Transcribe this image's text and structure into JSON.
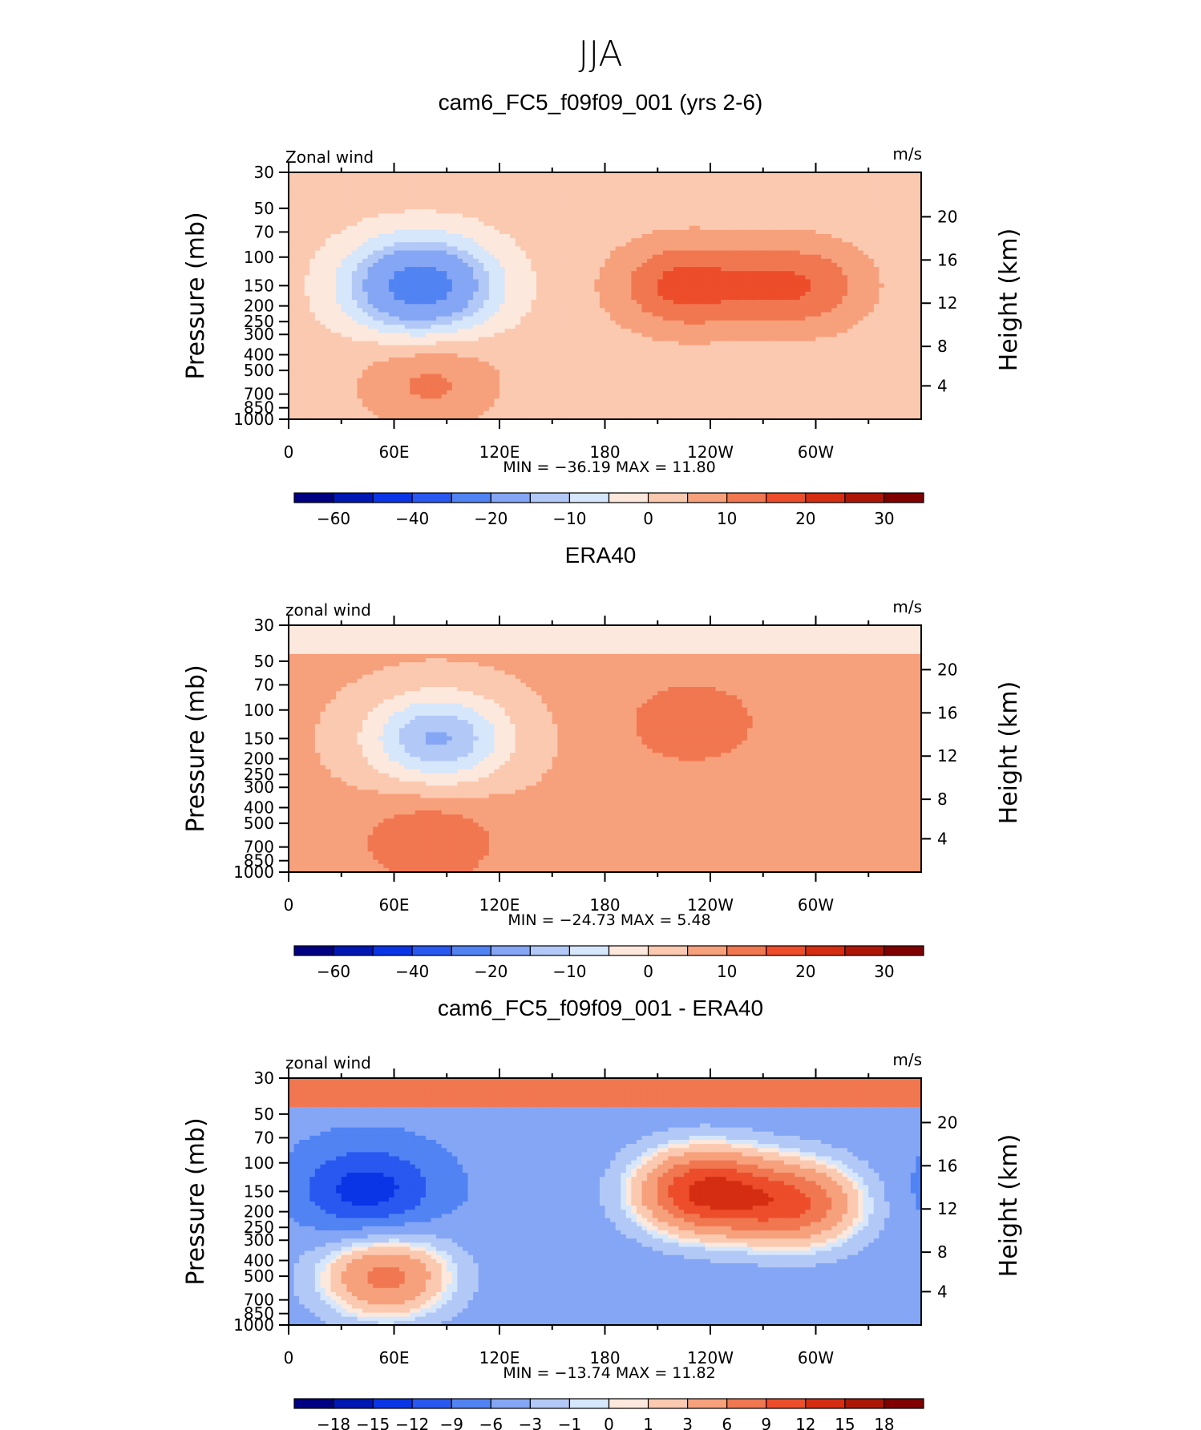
{
  "figure_title": "JJA",
  "chart_data": [
    {
      "type": "heatmap",
      "title": "cam6_FC5_f09f09_001 (yrs 2-6)",
      "left_label": "Zonal wind",
      "right_label": "m/s",
      "ylabel": "Pressure (mb)",
      "ylabel_right": "Height (km)",
      "y_ticks": [
        "30",
        "50",
        "70",
        "100",
        "150",
        "200",
        "250",
        "300",
        "400",
        "500",
        "700",
        "850",
        "1000"
      ],
      "y_right_ticks": [
        "20",
        "16",
        "12",
        "8",
        "4"
      ],
      "x_ticks": [
        "0",
        "60E",
        "120E",
        "180",
        "120W",
        "60W"
      ],
      "min_max_text": "MIN = −36.19   MAX =  11.80",
      "min": -36.19,
      "max": 11.8,
      "colorbar_labels": [
        "−60",
        "−40",
        "−20",
        "−10",
        "0",
        "10",
        "20",
        "30"
      ],
      "colorbar_levels": [
        -70,
        -60,
        -50,
        -40,
        -30,
        -20,
        -15,
        -10,
        -5,
        0,
        5,
        10,
        15,
        20,
        25,
        30
      ],
      "features": [
        {
          "lon": 75,
          "p": 150,
          "value": -36
        },
        {
          "lon": 225,
          "p": 150,
          "value": 11.8
        },
        {
          "lon": 290,
          "p": 150,
          "value": 10
        },
        {
          "lon": 80,
          "p": 600,
          "value": 6
        }
      ]
    },
    {
      "type": "heatmap",
      "title": "ERA40",
      "left_label": "zonal wind",
      "right_label": "m/s",
      "ylabel": "Pressure (mb)",
      "ylabel_right": "Height (km)",
      "y_ticks": [
        "30",
        "50",
        "70",
        "100",
        "150",
        "200",
        "250",
        "300",
        "400",
        "500",
        "700",
        "850",
        "1000"
      ],
      "y_right_ticks": [
        "20",
        "16",
        "12",
        "8",
        "4"
      ],
      "x_ticks": [
        "0",
        "60E",
        "120E",
        "180",
        "120W",
        "60W"
      ],
      "min_max_text": "MIN = −24.73   MAX =   5.48",
      "min": -24.73,
      "max": 5.48,
      "colorbar_labels": [
        "−60",
        "−40",
        "−20",
        "−10",
        "0",
        "10",
        "20",
        "30"
      ],
      "colorbar_levels": [
        -70,
        -60,
        -50,
        -40,
        -30,
        -20,
        -15,
        -10,
        -5,
        0,
        5,
        10,
        15,
        20,
        25,
        30
      ],
      "features": [
        {
          "lon": 85,
          "p": 150,
          "value": -24.7
        },
        {
          "lon": 230,
          "p": 120,
          "value": 5
        },
        {
          "lon": 80,
          "p": 650,
          "value": 5.5
        }
      ]
    },
    {
      "type": "heatmap",
      "title": "cam6_FC5_f09f09_001 - ERA40",
      "left_label": "zonal wind",
      "right_label": "m/s",
      "ylabel": "Pressure (mb)",
      "ylabel_right": "Height (km)",
      "y_ticks": [
        "30",
        "50",
        "70",
        "100",
        "150",
        "200",
        "250",
        "300",
        "400",
        "500",
        "700",
        "850",
        "1000"
      ],
      "y_right_ticks": [
        "20",
        "16",
        "12",
        "8",
        "4"
      ],
      "x_ticks": [
        "0",
        "60E",
        "120E",
        "180",
        "120W",
        "60W"
      ],
      "min_max_text": "MIN = −13.74   MAX =  11.82",
      "min": -13.74,
      "max": 11.82,
      "colorbar_labels": [
        "−18",
        "−15",
        "−12",
        "−9",
        "−6",
        "−3",
        "−1",
        "0",
        "1",
        "3",
        "6",
        "9",
        "12",
        "15",
        "18"
      ],
      "colorbar_levels": [
        -18,
        -15,
        -12,
        -9,
        -6,
        -3,
        -1,
        0,
        1,
        3,
        6,
        9,
        12,
        15,
        18
      ],
      "features": [
        {
          "lon": 45,
          "p": 150,
          "value": -13.7
        },
        {
          "lon": 235,
          "p": 150,
          "value": 11.8
        },
        {
          "lon": 290,
          "p": 180,
          "value": 8
        },
        {
          "lon": 55,
          "p": 500,
          "value": 7
        }
      ]
    }
  ],
  "colorbar_colors": [
    "#000082",
    "#0017b4",
    "#0a35e6",
    "#2858ef",
    "#5183f3",
    "#84a6f5",
    "#b2c8f7",
    "#d6e6fb",
    "#fce8dc",
    "#fbc9b0",
    "#f7a07c",
    "#f17750",
    "#ed4d2a",
    "#d52d12",
    "#ad1606",
    "#800000"
  ]
}
